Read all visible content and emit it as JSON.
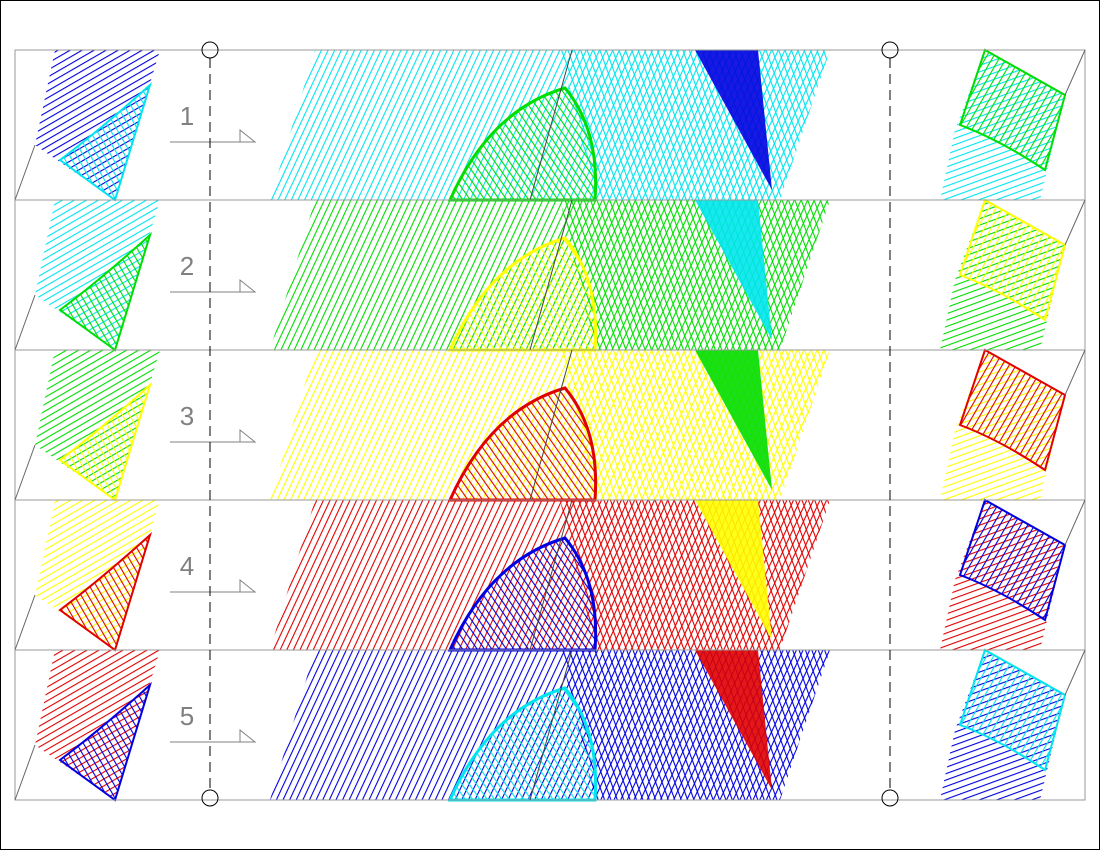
{
  "rows": [
    {
      "label": "1"
    },
    {
      "label": "2"
    },
    {
      "label": "3"
    },
    {
      "label": "4"
    },
    {
      "label": "5"
    }
  ]
}
